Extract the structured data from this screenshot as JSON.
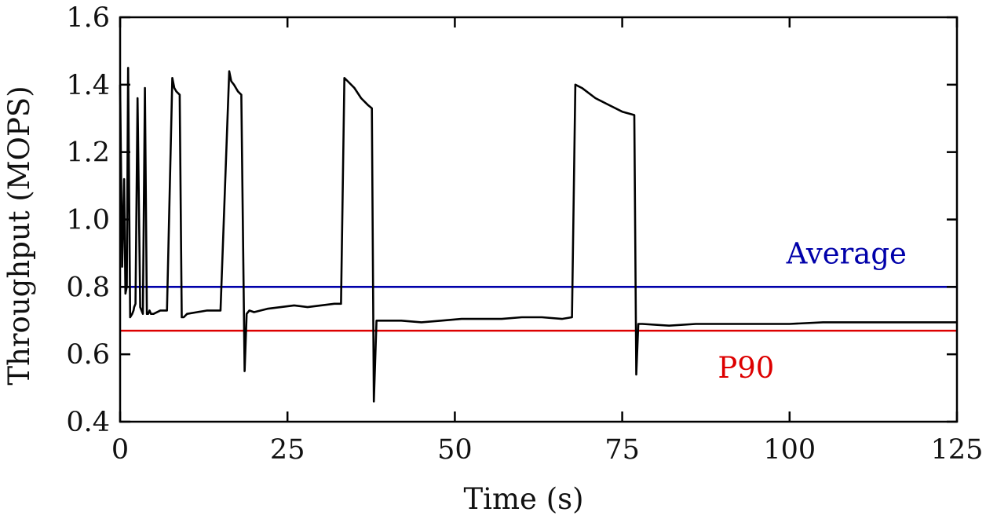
{
  "chart_data": {
    "type": "line",
    "title": "",
    "xlabel": "Time (s)",
    "ylabel": "Throughput (MOPS)",
    "xlim": [
      0,
      125
    ],
    "ylim": [
      0.4,
      1.6
    ],
    "x_ticks": [
      0,
      25,
      50,
      75,
      100,
      125
    ],
    "y_ticks": [
      0.4,
      0.6,
      0.8,
      1.0,
      1.2,
      1.4,
      1.6
    ],
    "x_tick_labels": [
      "0",
      "25",
      "50",
      "75",
      "100",
      "125"
    ],
    "y_tick_labels": [
      "0.4",
      "0.6",
      "0.8",
      "1.0",
      "1.2",
      "1.4",
      "1.6"
    ],
    "grid": false,
    "series": [
      {
        "name": "Throughput",
        "color": "#000000",
        "x": [
          0,
          0.3,
          0.6,
          0.8,
          1.0,
          1.2,
          1.5,
          1.8,
          2.0,
          2.1,
          2.3,
          2.6,
          3.0,
          3.4,
          3.7,
          4.0,
          4.2,
          4.4,
          4.6,
          5.0,
          6.0,
          7.0,
          7.8,
          8.1,
          8.4,
          8.9,
          9.2,
          9.5,
          10.0,
          11.5,
          13.0,
          15.0,
          16.3,
          16.6,
          17.0,
          17.6,
          18.1,
          18.6,
          18.9,
          19.3,
          20.0,
          22.0,
          24.0,
          26.0,
          28.0,
          30.0,
          32.0,
          33.0,
          33.5,
          34.0,
          35.0,
          36.0,
          37.0,
          37.6,
          37.9,
          38.3,
          39.0,
          42.0,
          45.0,
          48.0,
          51.0,
          54.0,
          57.0,
          60.0,
          63.0,
          66.0,
          67.5,
          68.0,
          69.0,
          71.0,
          73.0,
          75.0,
          76.8,
          77.1,
          77.4,
          78.0,
          82.0,
          86.0,
          90.0,
          95.0,
          100.0,
          105.0,
          110.0,
          115.0,
          120.0,
          125.0
        ],
        "values": [
          1.4,
          0.86,
          1.12,
          0.78,
          0.8,
          1.45,
          0.71,
          0.72,
          0.73,
          0.74,
          0.75,
          1.36,
          0.74,
          0.72,
          1.39,
          0.72,
          0.72,
          0.73,
          0.72,
          0.72,
          0.73,
          0.73,
          1.42,
          1.39,
          1.38,
          1.37,
          0.71,
          0.71,
          0.72,
          0.725,
          0.73,
          0.73,
          1.44,
          1.41,
          1.4,
          1.38,
          1.37,
          0.55,
          0.72,
          0.73,
          0.725,
          0.735,
          0.74,
          0.745,
          0.74,
          0.745,
          0.75,
          0.75,
          1.42,
          1.41,
          1.39,
          1.36,
          1.34,
          1.33,
          0.46,
          0.7,
          0.7,
          0.7,
          0.695,
          0.7,
          0.705,
          0.705,
          0.705,
          0.71,
          0.71,
          0.705,
          0.71,
          1.4,
          1.39,
          1.36,
          1.34,
          1.32,
          1.31,
          0.54,
          0.69,
          0.69,
          0.685,
          0.69,
          0.69,
          0.69,
          0.69,
          0.695,
          0.695,
          0.695,
          0.695,
          0.695
        ]
      }
    ],
    "hlines": [
      {
        "name": "Average",
        "label": "Average",
        "y": 0.8,
        "color": "#0000aa",
        "label_x": 108.5,
        "label_y": 0.87
      },
      {
        "name": "P90",
        "label": "P90",
        "y": 0.67,
        "color": "#dd0000",
        "label_x": 93.5,
        "label_y": 0.53
      }
    ]
  }
}
